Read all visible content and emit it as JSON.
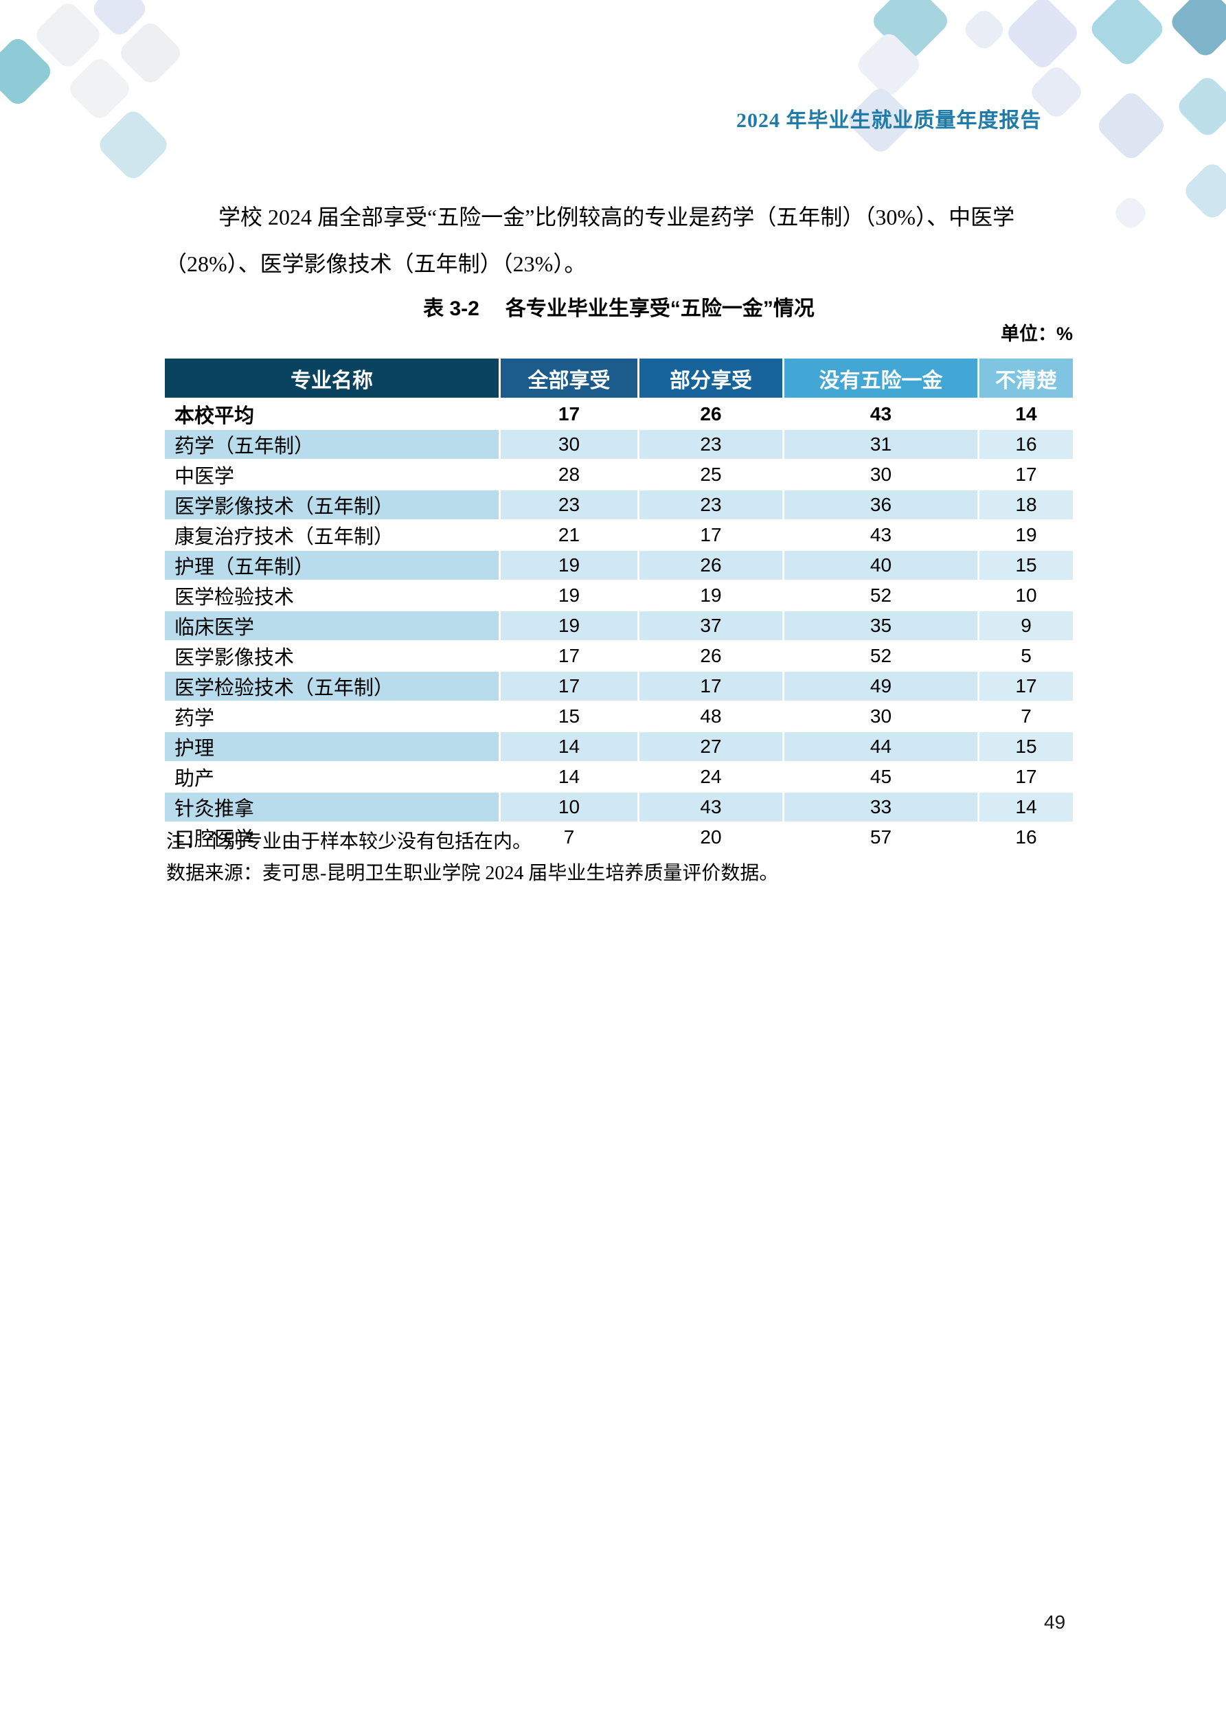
{
  "header": {
    "title": "2024 年毕业生就业质量年度报告"
  },
  "paragraph": {
    "lines": [
      "学校 2024 届全部享受“五险一金”比例较高的专业是药学（五年制）（30%）、中医学",
      "（28%）、医学影像技术（五年制）（23%）。"
    ]
  },
  "table": {
    "caption_label": "表 3-2",
    "caption_title": "各专业毕业生享受“五险一金”情况",
    "unit_label": "单位：%",
    "columns": [
      "专业名称",
      "全部享受",
      "部分享受",
      "没有五险一金",
      "不清楚"
    ],
    "rows": [
      {
        "name": "本校平均",
        "values": [
          17,
          26,
          43,
          14
        ]
      },
      {
        "name": "药学（五年制）",
        "values": [
          30,
          23,
          31,
          16
        ]
      },
      {
        "name": "中医学",
        "values": [
          28,
          25,
          30,
          17
        ]
      },
      {
        "name": "医学影像技术（五年制）",
        "values": [
          23,
          23,
          36,
          18
        ]
      },
      {
        "name": "康复治疗技术（五年制）",
        "values": [
          21,
          17,
          43,
          19
        ]
      },
      {
        "name": "护理（五年制）",
        "values": [
          19,
          26,
          40,
          15
        ]
      },
      {
        "name": "医学检验技术",
        "values": [
          19,
          19,
          52,
          10
        ]
      },
      {
        "name": "临床医学",
        "values": [
          19,
          37,
          35,
          9
        ]
      },
      {
        "name": "医学影像技术",
        "values": [
          17,
          26,
          52,
          5
        ]
      },
      {
        "name": "医学检验技术（五年制）",
        "values": [
          17,
          17,
          49,
          17
        ]
      },
      {
        "name": "药学",
        "values": [
          15,
          48,
          30,
          7
        ]
      },
      {
        "name": "护理",
        "values": [
          14,
          27,
          44,
          15
        ]
      },
      {
        "name": "助产",
        "values": [
          14,
          24,
          45,
          17
        ]
      },
      {
        "name": "针灸推拿",
        "values": [
          10,
          43,
          33,
          14
        ]
      },
      {
        "name": "口腔医学",
        "values": [
          7,
          20,
          57,
          16
        ]
      }
    ],
    "note": "注：个别专业由于样本较少没有包括在内。",
    "source": "数据来源：麦可思-昆明卫生职业学院 2024 届毕业生培养质量评价数据。"
  },
  "footer": {
    "page_number": "49"
  },
  "colors": {
    "header_title": "#1e7aa6",
    "table_header_cells": [
      "#0a435f",
      "#1b5c8c",
      "#17649c",
      "#43a7d6",
      "#7fc5e1"
    ],
    "stripe_name_cell": "#b8dcec",
    "stripe_value_cell": "#cfe8f4",
    "decor_teal": "#8ecbd7",
    "decor_lavender": "#e0e7f4"
  }
}
